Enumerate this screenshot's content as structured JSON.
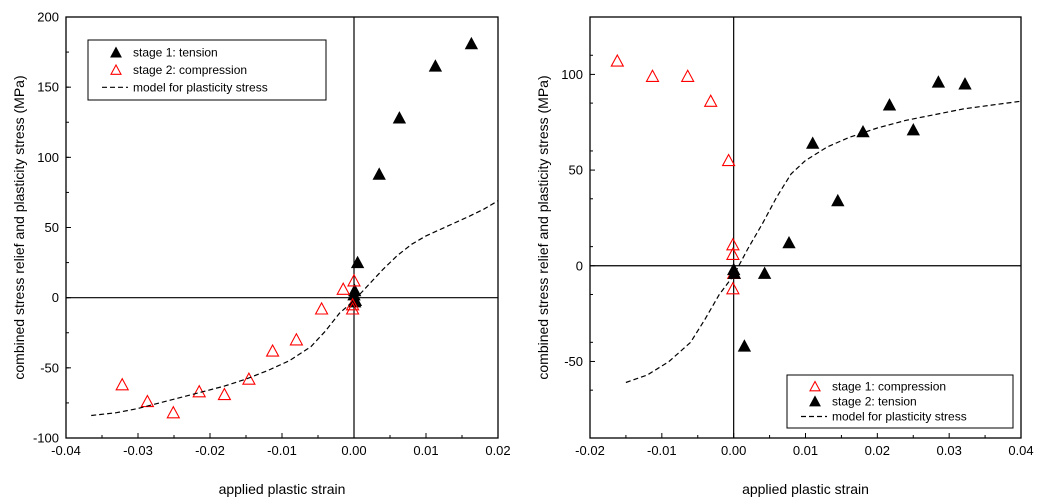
{
  "chart_data": [
    {
      "type": "scatter",
      "xlabel": "applied plastic strain",
      "ylabel": "combined stress relief and plasticity stress (MPa)",
      "xlim": [
        -0.04,
        0.02
      ],
      "ylim": [
        -100,
        200
      ],
      "xticks": [
        "-0.04",
        "-0.03",
        "-0.02",
        "-0.01",
        "0.00",
        "0.01",
        "0.02"
      ],
      "yticks": [
        "-100",
        "-50",
        "0",
        "50",
        "100",
        "150",
        "200"
      ],
      "legend_position": "top-left",
      "series": [
        {
          "name": "stage 1: tension",
          "marker": "filled-triangle",
          "color": "#000000",
          "points": [
            [
              0.0163,
              181
            ],
            [
              0.0113,
              165
            ],
            [
              0.0063,
              128
            ],
            [
              0.0035,
              88
            ],
            [
              0.0005,
              25
            ],
            [
              0.0001,
              5
            ],
            [
              0.0,
              2
            ],
            [
              0.0002,
              -2
            ],
            [
              0.0001,
              -3
            ]
          ]
        },
        {
          "name": "stage 2: compression",
          "marker": "open-triangle",
          "color": "#ff0000",
          "points": [
            [
              -0.0322,
              -62
            ],
            [
              -0.0287,
              -74
            ],
            [
              -0.0251,
              -82
            ],
            [
              -0.0215,
              -67
            ],
            [
              -0.018,
              -69
            ],
            [
              -0.0146,
              -58
            ],
            [
              -0.0113,
              -38
            ],
            [
              -0.008,
              -30
            ],
            [
              -0.0045,
              -8
            ],
            [
              -0.0015,
              6
            ],
            [
              0.0,
              12
            ],
            [
              -0.0002,
              -5
            ],
            [
              -0.0002,
              -8
            ]
          ]
        },
        {
          "name": "model for plasticity stress",
          "style": "dashed-line",
          "color": "#000000",
          "points": [
            [
              -0.0365,
              -84
            ],
            [
              -0.033,
              -82
            ],
            [
              -0.03,
              -79
            ],
            [
              -0.027,
              -75
            ],
            [
              -0.024,
              -71
            ],
            [
              -0.021,
              -67
            ],
            [
              -0.018,
              -63
            ],
            [
              -0.015,
              -58
            ],
            [
              -0.012,
              -52
            ],
            [
              -0.009,
              -45
            ],
            [
              -0.006,
              -35
            ],
            [
              -0.004,
              -24
            ],
            [
              -0.002,
              -11
            ],
            [
              0.0,
              -2
            ],
            [
              0.002,
              9
            ],
            [
              0.004,
              20
            ],
            [
              0.006,
              30
            ],
            [
              0.008,
              38
            ],
            [
              0.01,
              44
            ],
            [
              0.013,
              51
            ],
            [
              0.016,
              58
            ],
            [
              0.018,
              63
            ],
            [
              0.02,
              69
            ]
          ]
        }
      ]
    },
    {
      "type": "scatter",
      "xlabel": "applied plastic strain",
      "ylabel": "combined stress relief and plasticity stress (MPa)",
      "xlim": [
        -0.02,
        0.04
      ],
      "ylim": [
        -90,
        130
      ],
      "xticks": [
        "-0.02",
        "-0.01",
        "0.00",
        "0.01",
        "0.02",
        "0.03",
        "0.04"
      ],
      "yticks": [
        "-50",
        "0",
        "50",
        "100"
      ],
      "legend_position": "bottom-right",
      "series": [
        {
          "name": "stage 1: compression",
          "marker": "open-triangle",
          "color": "#ff0000",
          "points": [
            [
              -0.0162,
              107
            ],
            [
              -0.0113,
              99
            ],
            [
              -0.0064,
              99
            ],
            [
              -0.0032,
              86
            ],
            [
              -0.0007,
              55
            ],
            [
              -0.0001,
              11
            ],
            [
              -0.0001,
              6
            ],
            [
              0.0,
              -4
            ],
            [
              -0.0001,
              -12
            ]
          ]
        },
        {
          "name": "stage 2: tension",
          "marker": "filled-triangle",
          "color": "#000000",
          "points": [
            [
              0.0,
              -2
            ],
            [
              0.0001,
              -4
            ],
            [
              0.0015,
              -42
            ],
            [
              0.0043,
              -4
            ],
            [
              0.0077,
              12
            ],
            [
              0.011,
              64
            ],
            [
              0.0145,
              34
            ],
            [
              0.018,
              70
            ],
            [
              0.0217,
              84
            ],
            [
              0.025,
              71
            ],
            [
              0.0285,
              96
            ],
            [
              0.0322,
              95
            ]
          ]
        },
        {
          "name": "model for plasticity stress",
          "style": "dashed-line",
          "color": "#000000",
          "points": [
            [
              -0.015,
              -61
            ],
            [
              -0.012,
              -57
            ],
            [
              -0.009,
              -50
            ],
            [
              -0.006,
              -40
            ],
            [
              -0.004,
              -28
            ],
            [
              -0.002,
              -15
            ],
            [
              0.0,
              -5
            ],
            [
              0.002,
              9
            ],
            [
              0.004,
              22
            ],
            [
              0.006,
              36
            ],
            [
              0.008,
              48
            ],
            [
              0.01,
              55
            ],
            [
              0.013,
              62
            ],
            [
              0.016,
              67
            ],
            [
              0.02,
              72
            ],
            [
              0.024,
              76
            ],
            [
              0.028,
              79
            ],
            [
              0.032,
              82
            ],
            [
              0.036,
              84
            ],
            [
              0.04,
              86
            ]
          ]
        }
      ]
    }
  ]
}
